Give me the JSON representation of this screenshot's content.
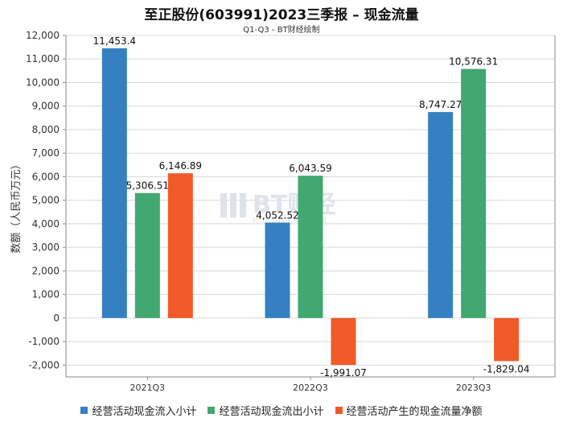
{
  "header": {
    "title": "至正股份(603991)2023三季报 – 现金流量",
    "subtitle": "Q1-Q3 - BT财经绘制"
  },
  "watermark": {
    "brand": "BT财经",
    "sub": "BUSINESSTIMES"
  },
  "colors": {
    "series": [
      "#3580c0",
      "#40a870",
      "#f05a28"
    ],
    "grid": "#d8d8d8",
    "axis": "#888888"
  },
  "chart_data": {
    "type": "bar",
    "title": "至正股份(603991)2023三季报 – 现金流量",
    "subtitle": "Q1-Q3 - BT财经绘制",
    "xlabel": "",
    "ylabel": "数额（人民币万元）",
    "ylim": [
      -2500,
      12000
    ],
    "yticks": [
      -2000,
      -1000,
      0,
      1000,
      2000,
      3000,
      4000,
      5000,
      6000,
      7000,
      8000,
      9000,
      10000,
      11000,
      12000
    ],
    "yticklabels": [
      "-2,000",
      "-1,000",
      "0",
      "1,000",
      "2,000",
      "3,000",
      "4,000",
      "5,000",
      "6,000",
      "7,000",
      "8,000",
      "9,000",
      "10,000",
      "11,000",
      "12,000"
    ],
    "categories": [
      "2021Q3",
      "2022Q3",
      "2023Q3"
    ],
    "grid": true,
    "legend_position": "bottom",
    "series": [
      {
        "name": "经营活动现金流入小计",
        "values": [
          11453.4,
          4052.52,
          8747.27
        ],
        "labels": [
          "11,453.4",
          "4,052.52",
          "8,747.27"
        ]
      },
      {
        "name": "经营活动现金流出小计",
        "values": [
          5306.51,
          6043.59,
          10576.31
        ],
        "labels": [
          "5,306.51",
          "6,043.59",
          "10,576.31"
        ]
      },
      {
        "name": "经营活动产生的现金流量净额",
        "values": [
          6146.89,
          -1991.07,
          -1829.04
        ],
        "labels": [
          "6,146.89",
          "-1,991.07",
          "-1,829.04"
        ]
      }
    ]
  }
}
